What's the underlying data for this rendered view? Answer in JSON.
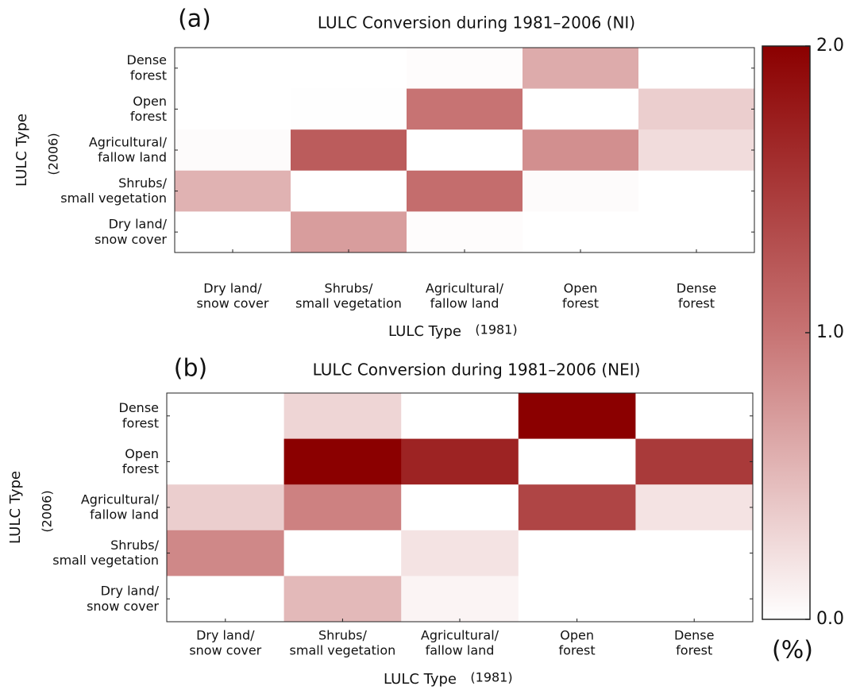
{
  "chart_data": [
    {
      "type": "heatmap",
      "panel_label": "(a)",
      "title": "LULC Conversion during 1981–2006 (NI)",
      "x_label": "LULC Type",
      "x_label_year": "(1981)",
      "y_label": "LULC Type",
      "y_label_year": "(2006)",
      "x_categories": [
        "Dry land/\nsnow cover",
        "Shrubs/\nsmall vegetation",
        "Agricultural/\nfallow land",
        "Open\nforest",
        "Dense\nforest"
      ],
      "y_categories": [
        "Dense\nforest",
        "Open\nforest",
        "Agricultural/\nfallow land",
        "Shrubs/\nsmall vegetation",
        "Dry land/\nsnow cover"
      ],
      "values": [
        [
          0,
          0,
          0.02,
          0.6,
          0
        ],
        [
          0,
          0.01,
          1.0,
          0,
          0.35
        ],
        [
          0.03,
          1.2,
          0,
          0.8,
          0.25
        ],
        [
          0.55,
          0,
          1.05,
          0.03,
          0
        ],
        [
          0,
          0.7,
          0.02,
          0,
          0
        ]
      ]
    },
    {
      "type": "heatmap",
      "panel_label": "(b)",
      "title": "LULC Conversion during 1981–2006 (NEI)",
      "x_label": "LULC Type",
      "x_label_year": "(1981)",
      "y_label": "LULC Type",
      "y_label_year": "(2006)",
      "x_categories": [
        "Dry land/\nsnow cover",
        "Shrubs/\nsmall vegetation",
        "Agricultural/\nfallow land",
        "Open\nforest",
        "Dense\nforest"
      ],
      "y_categories": [
        "Dense\nforest",
        "Open\nforest",
        "Agricultural/\nfallow land",
        "Shrubs/\nsmall vegetation",
        "Dry land/\nsnow cover"
      ],
      "values": [
        [
          0,
          0.3,
          0,
          2.0,
          0
        ],
        [
          0,
          2.0,
          1.7,
          0,
          1.5
        ],
        [
          0.35,
          0.9,
          0,
          1.4,
          0.2
        ],
        [
          0.85,
          0,
          0.2,
          0,
          0
        ],
        [
          0,
          0.5,
          0.08,
          0,
          0
        ]
      ]
    },
    {
      "type": "colorbar",
      "zlim": [
        0,
        2
      ],
      "zticks": [
        {
          "value": 0,
          "label": "0.0"
        },
        {
          "value": 1,
          "label": "1.0"
        },
        {
          "value": 2,
          "label": "2.0"
        }
      ],
      "unit_label": "(%)",
      "colors": [
        "#ffffff",
        "#c77373",
        "#8b0000"
      ]
    }
  ]
}
